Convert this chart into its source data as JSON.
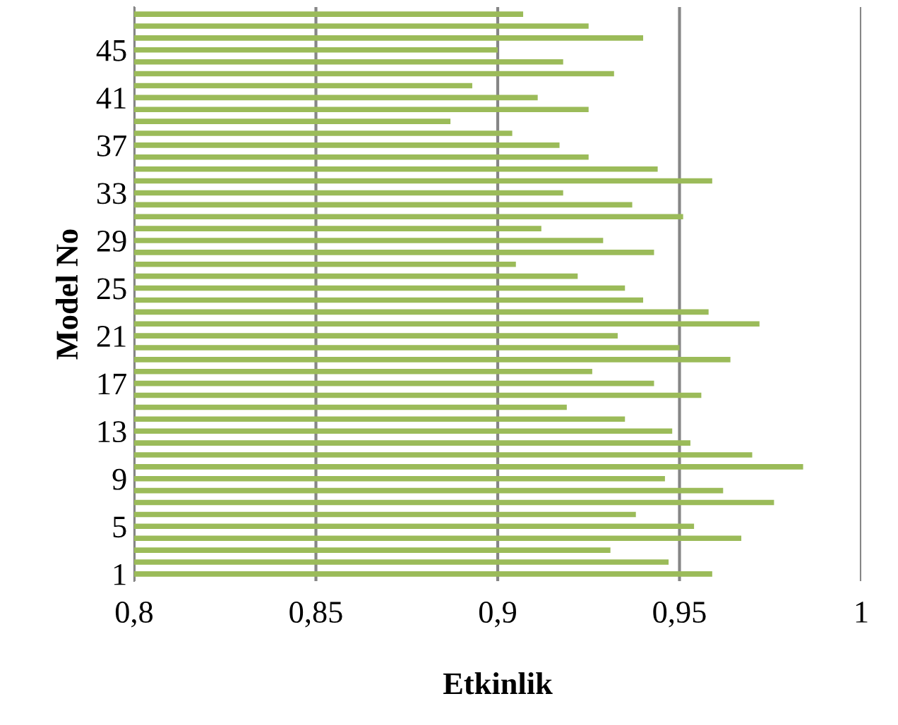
{
  "chart_data": {
    "type": "bar",
    "orientation": "horizontal",
    "xlabel": "Etkinlik",
    "ylabel": "Model No",
    "categories": [
      null,
      null,
      null,
      "45",
      null,
      null,
      null,
      "41",
      null,
      null,
      null,
      "37",
      null,
      null,
      null,
      "33",
      null,
      null,
      null,
      "29",
      null,
      null,
      null,
      "25",
      null,
      null,
      null,
      "21",
      null,
      null,
      null,
      "17",
      null,
      null,
      null,
      "13",
      null,
      null,
      null,
      "9",
      null,
      null,
      null,
      "5",
      null,
      null,
      null,
      "1"
    ],
    "values": [
      0.907,
      0.925,
      0.94,
      0.9,
      0.918,
      0.932,
      0.893,
      0.911,
      0.925,
      0.887,
      0.904,
      0.917,
      0.925,
      0.944,
      0.959,
      0.918,
      0.937,
      0.951,
      0.912,
      0.929,
      0.943,
      0.905,
      0.922,
      0.935,
      0.94,
      0.958,
      0.972,
      0.933,
      0.95,
      0.964,
      0.926,
      0.943,
      0.956,
      0.919,
      0.935,
      0.948,
      0.953,
      0.97,
      0.984,
      0.946,
      0.962,
      0.976,
      0.938,
      0.954,
      0.967,
      0.931,
      0.947,
      0.959
    ],
    "color": "#9bbb59",
    "xlim": [
      0.8,
      1
    ],
    "xticks": [
      {
        "value": 0.8,
        "label": "0,8"
      },
      {
        "value": 0.85,
        "label": "0,85"
      },
      {
        "value": 0.9,
        "label": "0,9"
      },
      {
        "value": 0.95,
        "label": "0,95"
      },
      {
        "value": 1,
        "label": "1"
      }
    ],
    "grid": "x",
    "legend": false
  }
}
